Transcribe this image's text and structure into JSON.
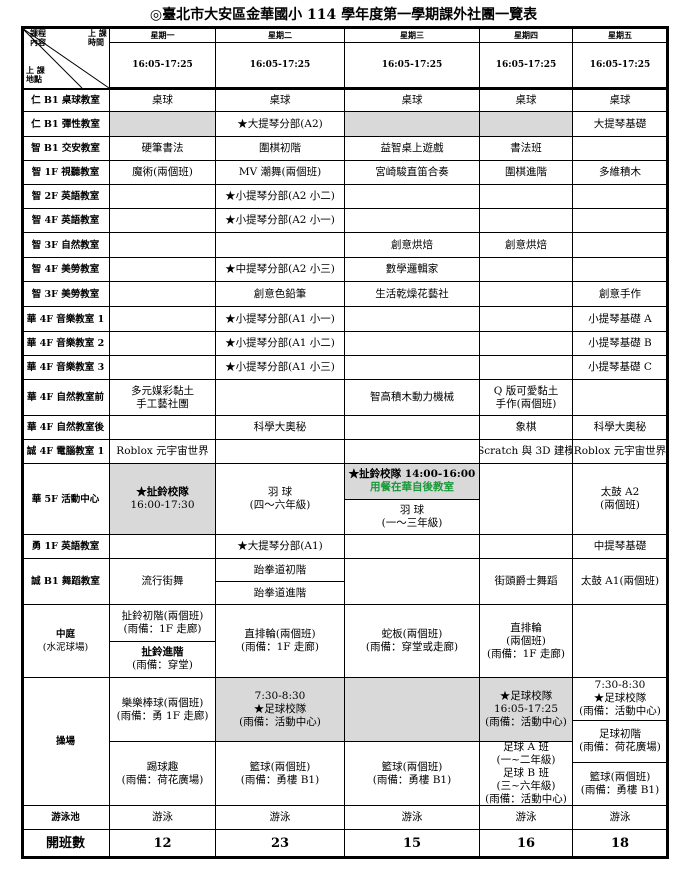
{
  "title": "◎臺北市大安區金華國小 114 學年度第一學期課外社團一覽表",
  "header": {
    "corner": {
      "content": [
        "課程",
        "內容"
      ],
      "time": [
        "上 課",
        "時間"
      ],
      "place": [
        "上 課",
        "地點"
      ]
    },
    "days": [
      "星期一",
      "星期二",
      "星期三",
      "星期四",
      "星期五"
    ],
    "times": [
      "16:05-17:25",
      "16:05-17:25",
      "16:05-17:25",
      "16:05-17:25",
      "16:05-17:25"
    ]
  },
  "rows": [
    {
      "room": "仁 B1 桌球教室",
      "cells": [
        "桌球",
        "桌球",
        "桌球",
        "桌球",
        "桌球"
      ]
    },
    {
      "room": "仁 B1 彈性教室",
      "cells": [
        null,
        "★大提琴分部(A2)",
        null,
        null,
        "大提琴基礎"
      ]
    },
    {
      "room": "智 B1 交安教室",
      "cells": [
        "硬筆書法",
        "圍棋初階",
        "益智桌上遊戲",
        "書法班",
        null
      ]
    },
    {
      "room": "智 1F 視聽教室",
      "cells": [
        "魔術(兩個班)",
        "MV 潮舞(兩個班)",
        "宮崎駿直笛合奏",
        "圍棋進階",
        "多維積木"
      ]
    },
    {
      "room": "智 2F 英語教室",
      "cells": [
        null,
        "★小提琴分部(A2 小二)",
        null,
        null,
        null
      ]
    },
    {
      "room": "智 4F 英語教室",
      "cells": [
        null,
        "★小提琴分部(A2 小一)",
        null,
        null,
        null
      ]
    },
    {
      "room": "智 3F 自然教室",
      "cells": [
        null,
        null,
        "創意烘焙",
        "創意烘焙",
        null
      ]
    },
    {
      "room": "智 4F 美勞教室",
      "cells": [
        null,
        "★中提琴分部(A2 小三)",
        "數學邏輯家",
        null,
        null
      ]
    },
    {
      "room": "智 3F 美勞教室",
      "cells": [
        null,
        "創意色鉛筆",
        "生活乾燥花藝社",
        null,
        "創意手作"
      ]
    },
    {
      "room": "華 4F 音樂教室 1",
      "cells": [
        null,
        "★小提琴分部(A1 小一)",
        null,
        null,
        "小提琴基礎 A"
      ]
    },
    {
      "room": "華 4F 音樂教室 2",
      "cells": [
        null,
        "★小提琴分部(A1 小二)",
        null,
        null,
        "小提琴基礎 B"
      ]
    },
    {
      "room": "華 4F 音樂教室 3",
      "cells": [
        null,
        "★小提琴分部(A1 小三)",
        null,
        null,
        "小提琴基礎 C"
      ]
    },
    {
      "room": "華 4F 自然教室前",
      "cells": [
        [
          "多元媒彩黏土",
          "手工藝社團"
        ],
        null,
        "智高積木動力機械",
        [
          "Q 版可愛黏土",
          "手作(兩個班)"
        ],
        null
      ]
    },
    {
      "room": "華 4F 自然教室後",
      "cells": [
        null,
        "科學大奧秘",
        null,
        "象棋",
        "科學大奧秘"
      ]
    },
    {
      "room": "誠 4F 電腦教室 1",
      "cells": [
        "Roblox 元宇宙世界",
        null,
        null,
        "Scratch 與 3D 建模",
        "Roblox 元宇宙世界"
      ]
    },
    {
      "room": "華 5F 活動中心",
      "cells": [
        [
          "★扯鈴校隊",
          "16:00-17:30"
        ],
        [
          "羽 球",
          "(四～六年級)"
        ],
        {
          "split": [
            [
              "★扯鈴校隊 14:00-16:00",
              "用餐在華自後教室"
            ],
            [
              "羽 球",
              "(一～三年級)"
            ]
          ]
        },
        null,
        [
          "太鼓 A2",
          "(兩個班)"
        ]
      ]
    },
    {
      "room": "勇 1F 英語教室",
      "cells": [
        null,
        "★大提琴分部(A1)",
        null,
        null,
        "中提琴基礎"
      ]
    },
    {
      "room": "誠 B1 舞蹈教室",
      "cells": [
        "流行街舞",
        {
          "split": [
            "跆拳道初階",
            "跆拳道進階"
          ]
        },
        null,
        "街頭爵士舞蹈",
        "太鼓 A1(兩個班)"
      ]
    },
    {
      "room": [
        "中庭",
        "(水泥球場)"
      ],
      "cells": [
        {
          "split": [
            [
              "扯鈴初階(兩個班)",
              "(雨備：1F 走廊)"
            ],
            [
              "扯鈴進階",
              "(雨備：穿堂)"
            ]
          ]
        },
        [
          "直排輪(兩個班)",
          "(雨備：1F 走廊)"
        ],
        [
          "蛇板(兩個班)",
          "(雨備：穿堂或走廊)"
        ],
        [
          "直排輪",
          "(兩個班)",
          "(雨備：1F 走廊)"
        ],
        null
      ]
    },
    {
      "room": "操場",
      "cells": [
        {
          "split": [
            [
              "樂樂棒球(兩個班)",
              "(雨備：勇 1F 走廊)"
            ],
            [
              "踢球趣",
              "(雨備：荷花廣場)"
            ]
          ]
        },
        {
          "split": [
            [
              "7:30-8:30",
              "★足球校隊",
              "(雨備：活動中心)"
            ],
            [
              "籃球(兩個班)",
              "(雨備：勇樓 B1)"
            ]
          ]
        },
        {
          "split": [
            null,
            [
              "籃球(兩個班)",
              "(雨備：勇樓 B1)"
            ]
          ]
        },
        {
          "split": [
            [
              "★足球校隊",
              "16:05-17:25",
              "(雨備：活動中心)"
            ],
            [
              "足球 A 班",
              "(一~二年級)",
              "足球 B 班",
              "(三~六年級)",
              "(雨備：活動中心)"
            ]
          ]
        },
        {
          "split": [
            [
              "7:30-8:30",
              "★足球校隊",
              "(雨備：活動中心)"
            ],
            [
              "足球初階",
              "(雨備：荷花廣場)"
            ],
            [
              "籃球(兩個班)",
              "(雨備：勇樓 B1)"
            ]
          ]
        }
      ]
    },
    {
      "room": "游泳池",
      "cells": [
        "游泳",
        "游泳",
        "游泳",
        "游泳",
        "游泳"
      ]
    },
    {
      "room": "開班數",
      "cells": [
        12,
        23,
        15,
        16,
        18
      ]
    }
  ]
}
